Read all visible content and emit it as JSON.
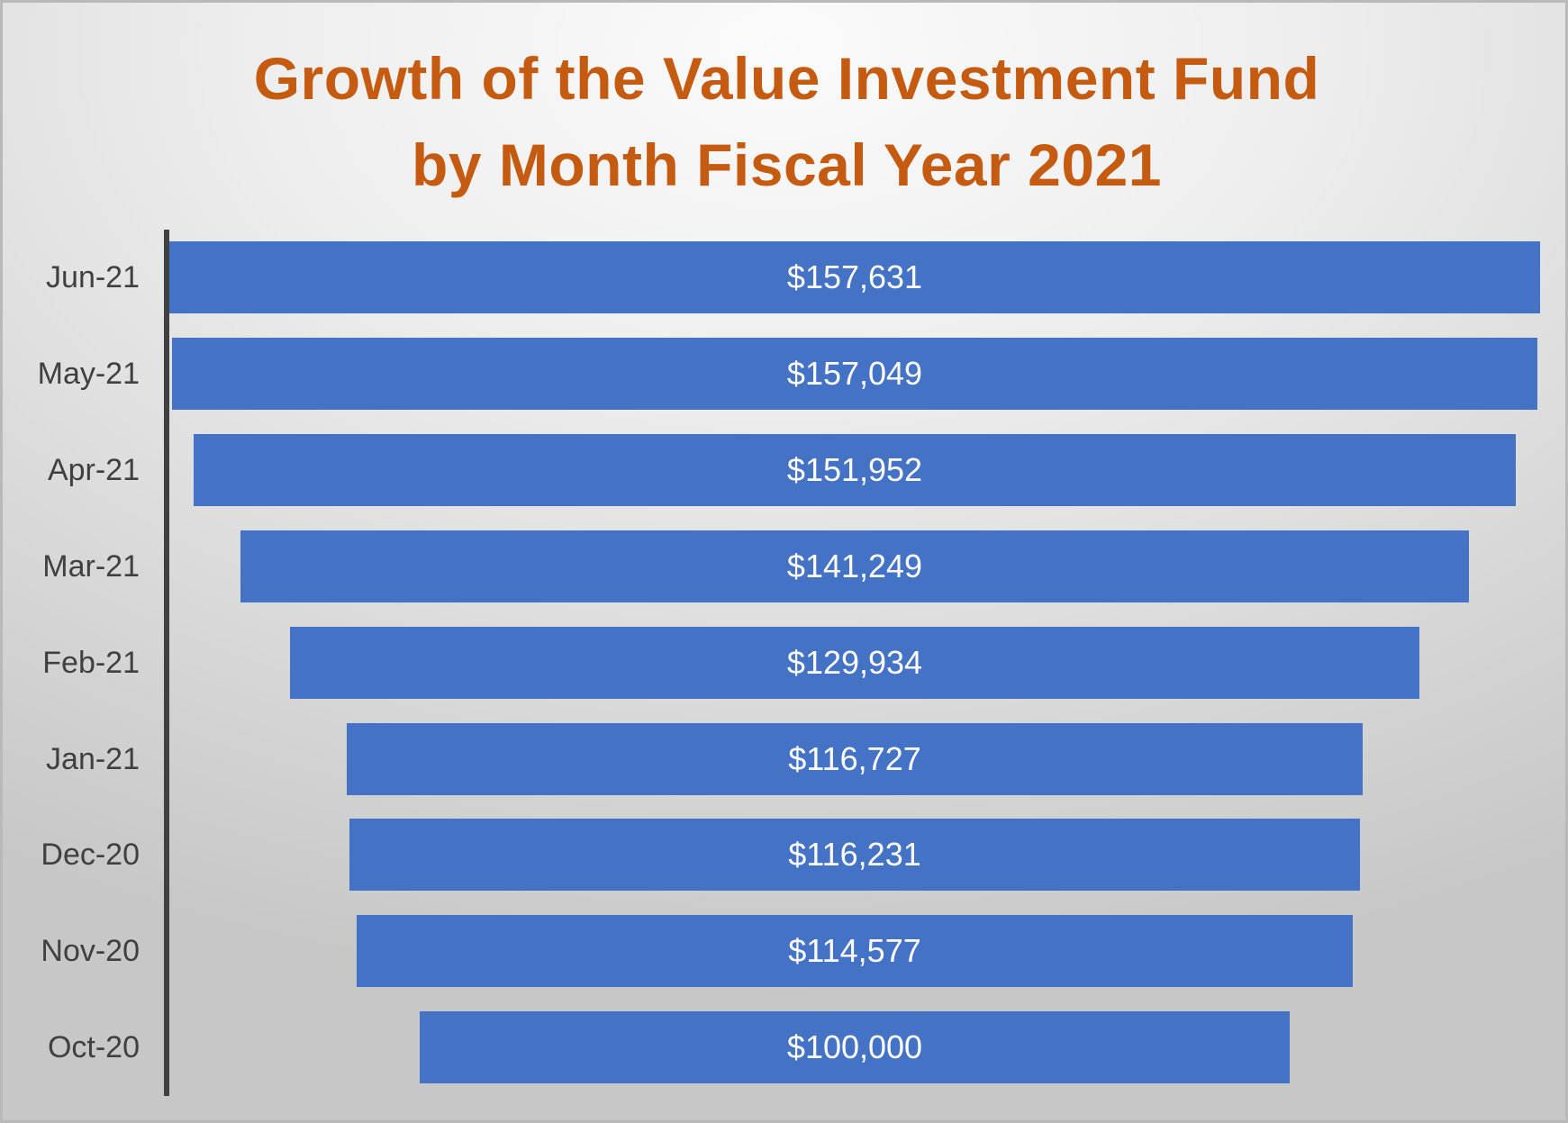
{
  "chart_data": {
    "type": "bar",
    "orientation": "horizontal",
    "variant": "funnel (centered bars)",
    "title": "Growth of the Value Investment Fund by Month Fiscal Year 2021",
    "title_lines": [
      "Growth of the Value Investment Fund",
      "by Month Fiscal Year 2021"
    ],
    "xlabel": "",
    "ylabel": "",
    "categories": [
      "Jun-21",
      "May-21",
      "Apr-21",
      "Mar-21",
      "Feb-21",
      "Jan-21",
      "Dec-20",
      "Nov-20",
      "Oct-20"
    ],
    "values": [
      157631,
      157049,
      151952,
      141249,
      129934,
      116727,
      116231,
      114577,
      100000
    ],
    "data_labels": [
      "$157,631",
      "$157,049",
      "$151,952",
      "$141,249",
      "$129,934",
      "$116,727",
      "$116,231",
      "$114,577",
      "$100,000"
    ],
    "grid": false,
    "legend": "none",
    "colors": {
      "bar": "#4472c4",
      "title": "#c55a11",
      "axis_line": "#404040",
      "category_label": "#404040",
      "data_label": "#ffffff"
    }
  }
}
